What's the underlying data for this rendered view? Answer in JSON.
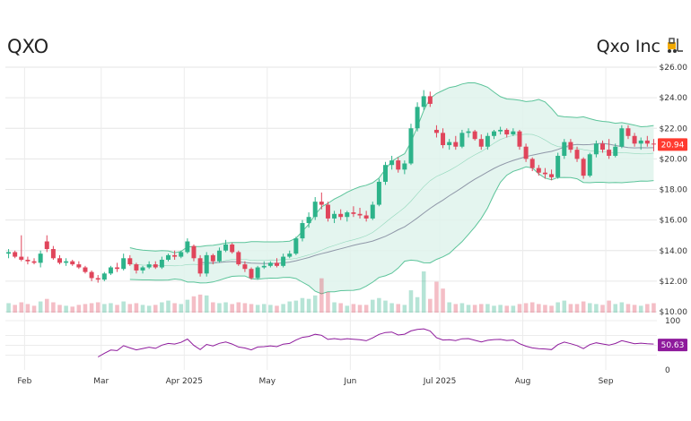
{
  "header": {
    "ticker": "QXO",
    "company": "Qxo Inc",
    "company_icon": "forklift-icon"
  },
  "colors": {
    "up": "#2db38a",
    "down": "#e0455b",
    "band_fill": "#dff3ec",
    "band_line": "#5cc49a",
    "ma_line": "#8f97a8",
    "rsi_line": "#8e1a9c",
    "price_badge": "#ff3b30",
    "rsi_badge": "#8e1a9c"
  },
  "chart_data": {
    "type": "candlestick",
    "price_axis": {
      "ticks": [
        "$26.00",
        "$24.00",
        "$22.00",
        "$20.00",
        "$18.00",
        "$16.00",
        "$14.00",
        "$12.00",
        "$10.00"
      ],
      "range": [
        10,
        26
      ]
    },
    "rsi_axis": {
      "ticks": [
        "100",
        "50",
        "0"
      ],
      "range": [
        0,
        100
      ]
    },
    "x_labels": [
      "Feb",
      "Mar",
      "Apr 2025",
      "May",
      "Jun",
      "Jul 2025",
      "Aug",
      "Sep"
    ],
    "last_price": "20.94",
    "last_rsi": "50.63",
    "candles": [
      {
        "d": "Jan 27",
        "o": 13.8,
        "h": 14.1,
        "l": 13.5,
        "c": 13.9,
        "v": 1.1
      },
      {
        "d": "Jan 29",
        "o": 13.9,
        "h": 14.0,
        "l": 13.5,
        "c": 13.6,
        "v": 0.9
      },
      {
        "d": "Jan 31",
        "o": 13.6,
        "h": 15.0,
        "l": 13.3,
        "c": 13.4,
        "v": 1.2
      },
      {
        "d": "Feb 3",
        "o": 13.4,
        "h": 13.6,
        "l": 13.1,
        "c": 13.3,
        "v": 1.0
      },
      {
        "d": "Feb 5",
        "o": 13.3,
        "h": 13.5,
        "l": 13.1,
        "c": 13.2,
        "v": 0.8
      },
      {
        "d": "Feb 7",
        "o": 13.2,
        "h": 14.0,
        "l": 12.9,
        "c": 13.8,
        "v": 1.3
      },
      {
        "d": "Feb 10",
        "o": 14.6,
        "h": 15.0,
        "l": 13.9,
        "c": 14.1,
        "v": 1.6
      },
      {
        "d": "Feb 12",
        "o": 14.1,
        "h": 14.3,
        "l": 13.4,
        "c": 13.5,
        "v": 1.2
      },
      {
        "d": "Feb 14",
        "o": 13.5,
        "h": 13.7,
        "l": 13.1,
        "c": 13.2,
        "v": 0.9
      },
      {
        "d": "Feb 17",
        "o": 13.2,
        "h": 13.5,
        "l": 13.0,
        "c": 13.3,
        "v": 0.8
      },
      {
        "d": "Feb 19",
        "o": 13.3,
        "h": 13.4,
        "l": 13.0,
        "c": 13.1,
        "v": 0.7
      },
      {
        "d": "Feb 21",
        "o": 13.1,
        "h": 13.3,
        "l": 12.8,
        "c": 12.9,
        "v": 0.9
      },
      {
        "d": "Feb 24",
        "o": 12.9,
        "h": 13.0,
        "l": 12.5,
        "c": 12.6,
        "v": 1.0
      },
      {
        "d": "Feb 26",
        "o": 12.6,
        "h": 12.7,
        "l": 12.0,
        "c": 12.2,
        "v": 1.1
      },
      {
        "d": "Feb 28",
        "o": 12.2,
        "h": 12.4,
        "l": 11.9,
        "c": 12.1,
        "v": 1.2
      },
      {
        "d": "Mar 3",
        "o": 12.1,
        "h": 12.6,
        "l": 12.0,
        "c": 12.5,
        "v": 1.0
      },
      {
        "d": "Mar 5",
        "o": 12.5,
        "h": 13.0,
        "l": 12.4,
        "c": 12.9,
        "v": 1.1
      },
      {
        "d": "Mar 7",
        "o": 12.9,
        "h": 13.2,
        "l": 12.6,
        "c": 12.8,
        "v": 0.9
      },
      {
        "d": "Mar 10",
        "o": 12.8,
        "h": 13.8,
        "l": 12.7,
        "c": 13.5,
        "v": 1.3
      },
      {
        "d": "Mar 12",
        "o": 13.5,
        "h": 13.7,
        "l": 13.0,
        "c": 13.1,
        "v": 1.0
      },
      {
        "d": "Mar 14",
        "o": 13.1,
        "h": 13.2,
        "l": 12.5,
        "c": 12.7,
        "v": 1.1
      },
      {
        "d": "Mar 17",
        "o": 12.7,
        "h": 13.0,
        "l": 12.5,
        "c": 12.9,
        "v": 0.9
      },
      {
        "d": "Mar 19",
        "o": 12.9,
        "h": 13.3,
        "l": 12.8,
        "c": 13.1,
        "v": 0.8
      },
      {
        "d": "Mar 21",
        "o": 13.1,
        "h": 13.3,
        "l": 12.8,
        "c": 12.9,
        "v": 0.9
      },
      {
        "d": "Mar 24",
        "o": 12.9,
        "h": 13.6,
        "l": 12.8,
        "c": 13.4,
        "v": 1.2
      },
      {
        "d": "Mar 26",
        "o": 13.4,
        "h": 13.8,
        "l": 13.3,
        "c": 13.7,
        "v": 1.4
      },
      {
        "d": "Mar 28",
        "o": 13.7,
        "h": 14.0,
        "l": 13.4,
        "c": 13.6,
        "v": 1.1
      },
      {
        "d": "Mar 31",
        "o": 13.6,
        "h": 14.0,
        "l": 13.5,
        "c": 13.9,
        "v": 1.0
      },
      {
        "d": "Apr 2",
        "o": 13.9,
        "h": 14.8,
        "l": 13.8,
        "c": 14.6,
        "v": 1.5
      },
      {
        "d": "Apr 4",
        "o": 14.3,
        "h": 14.4,
        "l": 13.3,
        "c": 13.5,
        "v": 1.9
      },
      {
        "d": "Apr 7",
        "o": 13.5,
        "h": 13.7,
        "l": 12.3,
        "c": 12.5,
        "v": 2.1
      },
      {
        "d": "Apr 9",
        "o": 12.5,
        "h": 13.9,
        "l": 12.3,
        "c": 13.7,
        "v": 2.0
      },
      {
        "d": "Apr 11",
        "o": 13.7,
        "h": 13.8,
        "l": 13.1,
        "c": 13.3,
        "v": 1.2
      },
      {
        "d": "Apr 14",
        "o": 13.3,
        "h": 14.2,
        "l": 13.2,
        "c": 14.0,
        "v": 1.1
      },
      {
        "d": "Apr 16",
        "o": 14.0,
        "h": 14.7,
        "l": 13.9,
        "c": 14.4,
        "v": 1.2
      },
      {
        "d": "Apr 18",
        "o": 14.4,
        "h": 14.5,
        "l": 13.8,
        "c": 13.9,
        "v": 1.0
      },
      {
        "d": "Apr 21",
        "o": 13.9,
        "h": 14.0,
        "l": 13.0,
        "c": 13.1,
        "v": 1.2
      },
      {
        "d": "Apr 23",
        "o": 13.1,
        "h": 13.3,
        "l": 12.6,
        "c": 12.8,
        "v": 1.1
      },
      {
        "d": "Apr 25",
        "o": 12.8,
        "h": 12.9,
        "l": 12.1,
        "c": 12.2,
        "v": 1.0
      },
      {
        "d": "Apr 28",
        "o": 12.2,
        "h": 13.0,
        "l": 12.1,
        "c": 12.9,
        "v": 0.9
      },
      {
        "d": "Apr 30",
        "o": 12.9,
        "h": 13.3,
        "l": 12.8,
        "c": 13.0,
        "v": 1.0
      },
      {
        "d": "May 2",
        "o": 13.0,
        "h": 13.3,
        "l": 12.9,
        "c": 13.2,
        "v": 0.9
      },
      {
        "d": "May 5",
        "o": 13.2,
        "h": 13.5,
        "l": 12.9,
        "c": 13.0,
        "v": 0.8
      },
      {
        "d": "May 7",
        "o": 13.0,
        "h": 13.8,
        "l": 12.9,
        "c": 13.6,
        "v": 1.0
      },
      {
        "d": "May 9",
        "o": 13.6,
        "h": 14.0,
        "l": 13.5,
        "c": 13.8,
        "v": 1.3
      },
      {
        "d": "May 12",
        "o": 13.8,
        "h": 14.9,
        "l": 13.7,
        "c": 14.8,
        "v": 1.4
      },
      {
        "d": "May 14",
        "o": 14.8,
        "h": 16.0,
        "l": 14.6,
        "c": 15.8,
        "v": 1.7
      },
      {
        "d": "May 16",
        "o": 15.8,
        "h": 16.5,
        "l": 15.5,
        "c": 16.2,
        "v": 1.6
      },
      {
        "d": "May 19",
        "o": 16.2,
        "h": 17.5,
        "l": 16.0,
        "c": 17.2,
        "v": 2.0
      },
      {
        "d": "May 21",
        "o": 17.2,
        "h": 17.8,
        "l": 16.7,
        "c": 17.0,
        "v": 4.0
      },
      {
        "d": "May 23",
        "o": 17.0,
        "h": 17.2,
        "l": 15.9,
        "c": 16.1,
        "v": 2.4
      },
      {
        "d": "May 27",
        "o": 16.1,
        "h": 16.6,
        "l": 15.8,
        "c": 16.4,
        "v": 1.2
      },
      {
        "d": "May 29",
        "o": 16.4,
        "h": 16.7,
        "l": 16.0,
        "c": 16.2,
        "v": 1.1
      },
      {
        "d": "May 31",
        "o": 16.2,
        "h": 16.6,
        "l": 15.9,
        "c": 16.5,
        "v": 0.8
      },
      {
        "d": "Jun 3",
        "o": 16.5,
        "h": 16.9,
        "l": 16.2,
        "c": 16.4,
        "v": 1.0
      },
      {
        "d": "Jun 5",
        "o": 16.4,
        "h": 16.8,
        "l": 16.1,
        "c": 16.3,
        "v": 0.9
      },
      {
        "d": "Jun 7",
        "o": 16.3,
        "h": 16.6,
        "l": 15.9,
        "c": 16.1,
        "v": 0.9
      },
      {
        "d": "Jun 9",
        "o": 16.1,
        "h": 17.2,
        "l": 16.0,
        "c": 17.0,
        "v": 1.5
      },
      {
        "d": "Jun 11",
        "o": 17.0,
        "h": 18.7,
        "l": 16.9,
        "c": 18.5,
        "v": 1.7
      },
      {
        "d": "Jun 13",
        "o": 18.5,
        "h": 19.8,
        "l": 18.3,
        "c": 19.6,
        "v": 1.4
      },
      {
        "d": "Jun 16",
        "o": 19.6,
        "h": 20.2,
        "l": 19.3,
        "c": 19.9,
        "v": 1.1
      },
      {
        "d": "Jun 18",
        "o": 19.9,
        "h": 20.1,
        "l": 19.1,
        "c": 19.3,
        "v": 1.0
      },
      {
        "d": "Jun 20",
        "o": 19.3,
        "h": 19.9,
        "l": 19.0,
        "c": 19.7,
        "v": 0.9
      },
      {
        "d": "Jun 23",
        "o": 19.7,
        "h": 22.3,
        "l": 19.6,
        "c": 22.0,
        "v": 2.6
      },
      {
        "d": "Jun 24",
        "o": 22.0,
        "h": 23.7,
        "l": 21.8,
        "c": 23.4,
        "v": 1.8
      },
      {
        "d": "Jun 25",
        "o": 23.4,
        "h": 24.5,
        "l": 23.2,
        "c": 24.1,
        "v": 4.8
      },
      {
        "d": "Jun 27",
        "o": 24.1,
        "h": 24.4,
        "l": 23.4,
        "c": 23.6,
        "v": 1.6
      },
      {
        "d": "Jun 30",
        "o": 21.9,
        "h": 22.2,
        "l": 21.4,
        "c": 21.7,
        "v": 3.6
      },
      {
        "d": "Jul 2",
        "o": 21.7,
        "h": 22.0,
        "l": 20.7,
        "c": 20.9,
        "v": 2.8
      },
      {
        "d": "Jul 4",
        "o": 20.9,
        "h": 21.3,
        "l": 20.6,
        "c": 21.1,
        "v": 1.2
      },
      {
        "d": "Jul 7",
        "o": 21.1,
        "h": 21.5,
        "l": 20.6,
        "c": 20.8,
        "v": 1.0
      },
      {
        "d": "Jul 9",
        "o": 20.8,
        "h": 21.9,
        "l": 20.7,
        "c": 21.7,
        "v": 1.1
      },
      {
        "d": "Jul 11",
        "o": 21.7,
        "h": 22.0,
        "l": 21.4,
        "c": 21.8,
        "v": 0.9
      },
      {
        "d": "Jul 14",
        "o": 21.8,
        "h": 21.9,
        "l": 21.2,
        "c": 21.3,
        "v": 0.9
      },
      {
        "d": "Jul 16",
        "o": 21.3,
        "h": 21.6,
        "l": 20.6,
        "c": 20.8,
        "v": 1.0
      },
      {
        "d": "Jul 18",
        "o": 20.8,
        "h": 21.7,
        "l": 20.6,
        "c": 21.5,
        "v": 1.0
      },
      {
        "d": "Jul 21",
        "o": 21.5,
        "h": 21.9,
        "l": 21.3,
        "c": 21.8,
        "v": 0.8
      },
      {
        "d": "Jul 23",
        "o": 21.8,
        "h": 22.1,
        "l": 21.6,
        "c": 21.9,
        "v": 0.9
      },
      {
        "d": "Jul 25",
        "o": 21.9,
        "h": 22.0,
        "l": 21.4,
        "c": 21.6,
        "v": 0.8
      },
      {
        "d": "Jul 28",
        "o": 21.6,
        "h": 22.0,
        "l": 21.5,
        "c": 21.8,
        "v": 0.8
      },
      {
        "d": "Jul 30",
        "o": 21.8,
        "h": 21.9,
        "l": 20.6,
        "c": 20.8,
        "v": 1.0
      },
      {
        "d": "Aug 1",
        "o": 20.8,
        "h": 21.0,
        "l": 19.8,
        "c": 20.0,
        "v": 1.1
      },
      {
        "d": "Aug 4",
        "o": 20.0,
        "h": 20.1,
        "l": 19.2,
        "c": 19.4,
        "v": 1.2
      },
      {
        "d": "Aug 6",
        "o": 19.4,
        "h": 19.6,
        "l": 18.9,
        "c": 19.1,
        "v": 1.0
      },
      {
        "d": "Aug 8",
        "o": 19.1,
        "h": 19.4,
        "l": 18.7,
        "c": 19.0,
        "v": 0.9
      },
      {
        "d": "Aug 11",
        "o": 19.0,
        "h": 19.3,
        "l": 18.6,
        "c": 18.8,
        "v": 0.8
      },
      {
        "d": "Aug 13",
        "o": 18.8,
        "h": 20.4,
        "l": 18.7,
        "c": 20.2,
        "v": 1.2
      },
      {
        "d": "Aug 15",
        "o": 20.2,
        "h": 21.3,
        "l": 20.0,
        "c": 21.1,
        "v": 1.4
      },
      {
        "d": "Aug 18",
        "o": 21.1,
        "h": 21.3,
        "l": 20.4,
        "c": 20.6,
        "v": 1.0
      },
      {
        "d": "Aug 20",
        "o": 20.6,
        "h": 20.8,
        "l": 19.8,
        "c": 20.0,
        "v": 1.0
      },
      {
        "d": "Aug 22",
        "o": 20.0,
        "h": 20.1,
        "l": 18.7,
        "c": 18.9,
        "v": 1.3
      },
      {
        "d": "Aug 25",
        "o": 18.9,
        "h": 20.4,
        "l": 18.8,
        "c": 20.3,
        "v": 1.1
      },
      {
        "d": "Aug 27",
        "o": 20.3,
        "h": 21.2,
        "l": 20.1,
        "c": 21.0,
        "v": 1.0
      },
      {
        "d": "Aug 29",
        "o": 21.0,
        "h": 21.2,
        "l": 20.4,
        "c": 20.6,
        "v": 0.9
      },
      {
        "d": "Sep 2",
        "o": 20.6,
        "h": 21.3,
        "l": 20.0,
        "c": 20.2,
        "v": 1.4
      },
      {
        "d": "Sep 4",
        "o": 20.2,
        "h": 21.0,
        "l": 20.1,
        "c": 20.8,
        "v": 1.0
      },
      {
        "d": "Sep 8",
        "o": 20.8,
        "h": 22.2,
        "l": 20.7,
        "c": 22.0,
        "v": 1.2
      },
      {
        "d": "Sep 10",
        "o": 22.0,
        "h": 22.2,
        "l": 21.3,
        "c": 21.5,
        "v": 1.0
      },
      {
        "d": "Sep 12",
        "o": 21.5,
        "h": 21.7,
        "l": 20.8,
        "c": 21.0,
        "v": 0.9
      },
      {
        "d": "Sep 15",
        "o": 21.0,
        "h": 21.4,
        "l": 20.6,
        "c": 21.2,
        "v": 0.8
      },
      {
        "d": "Sep 17",
        "o": 21.2,
        "h": 21.5,
        "l": 20.8,
        "c": 21.0,
        "v": 1.0
      },
      {
        "d": "Sep 19",
        "o": 21.0,
        "h": 21.3,
        "l": 20.5,
        "c": 20.94,
        "v": 1.1
      }
    ]
  }
}
